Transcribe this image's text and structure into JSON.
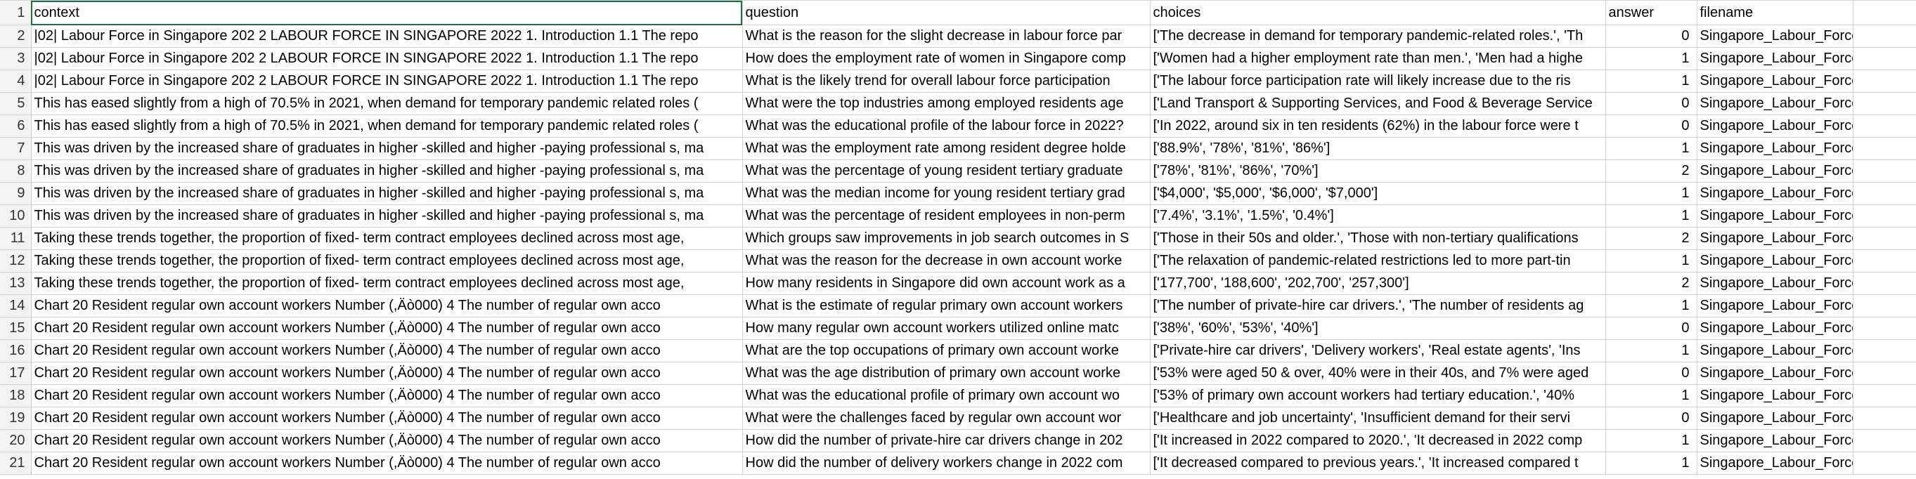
{
  "headers": {
    "row_number": "1",
    "context": "context",
    "question": "question",
    "choices": "choices",
    "answer": "answer",
    "filename": "filename"
  },
  "rows": [
    {
      "n": "2",
      "context": "|02| Labour Force in Singapore 202 2 LABOUR FORCE IN SINGAPORE 2022     1. Introduction     1.1 The repo",
      "question": "What is the reason for the slight decrease in labour force par",
      "choices": "['The decrease in demand for temporary pandemic-related roles.', 'Th",
      "answer": "0",
      "filename": "Singapore_Labour_Force.pdf"
    },
    {
      "n": "3",
      "context": "|02| Labour Force in Singapore 202 2 LABOUR FORCE IN SINGAPORE 2022     1. Introduction     1.1 The repo",
      "question": "How does the employment rate of women in Singapore comp",
      "choices": "['Women had a higher employment rate than men.', 'Men had a highe",
      "answer": "1",
      "filename": "Singapore_Labour_Force.pdf"
    },
    {
      "n": "4",
      "context": "|02| Labour Force in Singapore 202 2 LABOUR FORCE IN SINGAPORE 2022     1. Introduction     1.1 The repo",
      "question": "What is the likely trend for overall labour force participation",
      "choices": "['The labour force participation rate will likely increase due to the ris",
      "answer": "1",
      "filename": "Singapore_Labour_Force.pdf"
    },
    {
      "n": "5",
      "context": "This has eased  slightly  from a high of 70.5% in 2021, when demand for temporary pandemic related roles (",
      "question": "What were the top industries among employed residents age",
      "choices": "['Land Transport & Supporting Services, and Food & Beverage Service",
      "answer": "0",
      "filename": "Singapore_Labour_Force.pdf"
    },
    {
      "n": "6",
      "context": "This has eased  slightly  from a high of 70.5% in 2021, when demand for temporary pandemic related roles (",
      "question": "What was the educational profile of the labour force in 2022?",
      "choices": "['In 2022, around six in ten residents (62%) in the labour force were t",
      "answer": "0",
      "filename": "Singapore_Labour_Force.pdf"
    },
    {
      "n": "7",
      "context": "This was driven by the increased share of  graduates in higher -skilled and higher -paying professional s, ma",
      "question": "What was the employment rate among resident degree holde",
      "choices": "['88.9%', '78%', '81%', '86%']",
      "answer": "1",
      "filename": "Singapore_Labour_Force.pdf"
    },
    {
      "n": "8",
      "context": "This was driven by the increased share of  graduates in higher -skilled and higher -paying professional s, ma",
      "question": "What was the percentage of young resident tertiary graduate",
      "choices": "['78%', '81%', '86%', '70%']",
      "answer": "2",
      "filename": "Singapore_Labour_Force.pdf"
    },
    {
      "n": "9",
      "context": "This was driven by the increased share of  graduates in higher -skilled and higher -paying professional s, ma",
      "question": "What was the median income for young resident tertiary grad",
      "choices": "['$4,000', '$5,000', '$6,000', '$7,000']",
      "answer": "1",
      "filename": "Singapore_Labour_Force.pdf"
    },
    {
      "n": "10",
      "context": "This was driven by the increased share of  graduates in higher -skilled and higher -paying professional s, ma",
      "question": "What was the percentage of resident employees in non-perm",
      "choices": "['7.4%', '3.1%', '1.5%', '0.4%']",
      "answer": "1",
      "filename": "Singapore_Labour_Force.pdf"
    },
    {
      "n": "11",
      "context": "Taking these trends together, the proportion of fixed- term contract  employees declined across most age,",
      "question": "Which groups saw improvements in job search outcomes in S",
      "choices": "['Those in their 50s and older.', 'Those with non-tertiary qualifications",
      "answer": "2",
      "filename": "Singapore_Labour_Force.pdf"
    },
    {
      "n": "12",
      "context": "Taking these trends together, the proportion of fixed- term contract  employees declined across most age,",
      "question": "What was the reason for the decrease in own account worke",
      "choices": "['The relaxation of pandemic-related restrictions led to more part-tin",
      "answer": "1",
      "filename": "Singapore_Labour_Force.pdf"
    },
    {
      "n": "13",
      "context": "Taking these trends together, the proportion of fixed- term contract  employees declined across most age,",
      "question": "How many residents in Singapore did own account work as a",
      "choices": "['177,700', '188,600', '202,700', '257,300']",
      "answer": "2",
      "filename": "Singapore_Labour_Force.pdf"
    },
    {
      "n": "14",
      "context": "Chart 20  Resident regular own account workers   Number (,Äò000)          4  The number of regular own acco",
      "question": "What is the estimate of regular primary own account workers",
      "choices": "['The number of private-hire car drivers.', 'The number of residents ag",
      "answer": "1",
      "filename": "Singapore_Labour_Force.pdf"
    },
    {
      "n": "15",
      "context": "Chart 20  Resident regular own account workers   Number (,Äò000)          4  The number of regular own acco",
      "question": "How many regular own account workers utilized online matc",
      "choices": "['38%', '60%', '53%', '40%']",
      "answer": "0",
      "filename": "Singapore_Labour_Force.pdf"
    },
    {
      "n": "16",
      "context": "Chart 20  Resident regular own account workers   Number (,Äò000)          4  The number of regular own acco",
      "question": "What are the top occupations of primary own account worke",
      "choices": "['Private-hire car drivers', 'Delivery workers', 'Real estate agents', 'Ins",
      "answer": "1",
      "filename": "Singapore_Labour_Force.pdf"
    },
    {
      "n": "17",
      "context": "Chart 20  Resident regular own account workers   Number (,Äò000)          4  The number of regular own acco",
      "question": "What was the age distribution of primary own account worke",
      "choices": "['53% were aged 50 & over, 40% were in their 40s, and 7% were aged",
      "answer": "0",
      "filename": "Singapore_Labour_Force.pdf"
    },
    {
      "n": "18",
      "context": "Chart 20  Resident regular own account workers   Number (,Äò000)          4  The number of regular own acco",
      "question": "What was the educational profile of primary own account wo",
      "choices": "['53% of primary own account workers had tertiary education.', '40%",
      "answer": "1",
      "filename": "Singapore_Labour_Force.pdf"
    },
    {
      "n": "19",
      "context": "Chart 20  Resident regular own account workers   Number (,Äò000)          4  The number of regular own acco",
      "question": "What were the challenges faced by regular own account wor",
      "choices": "['Healthcare and job uncertainty', 'Insufficient demand for their servi",
      "answer": "0",
      "filename": "Singapore_Labour_Force.pdf"
    },
    {
      "n": "20",
      "context": "Chart 20  Resident regular own account workers   Number (,Äò000)          4  The number of regular own acco",
      "question": "How did the number of private-hire car drivers change in 202",
      "choices": "['It increased in 2022 compared to 2020.', 'It decreased in 2022 comp",
      "answer": "1",
      "filename": "Singapore_Labour_Force.pdf"
    },
    {
      "n": "21",
      "context": "Chart 20  Resident regular own account workers   Number (,Äò000)          4  The number of regular own acco",
      "question": "How did the number of delivery workers change in 2022 com",
      "choices": "['It decreased compared to previous years.', 'It increased compared t",
      "answer": "1",
      "filename": "Singapore_Labour_Force.pdf"
    }
  ]
}
